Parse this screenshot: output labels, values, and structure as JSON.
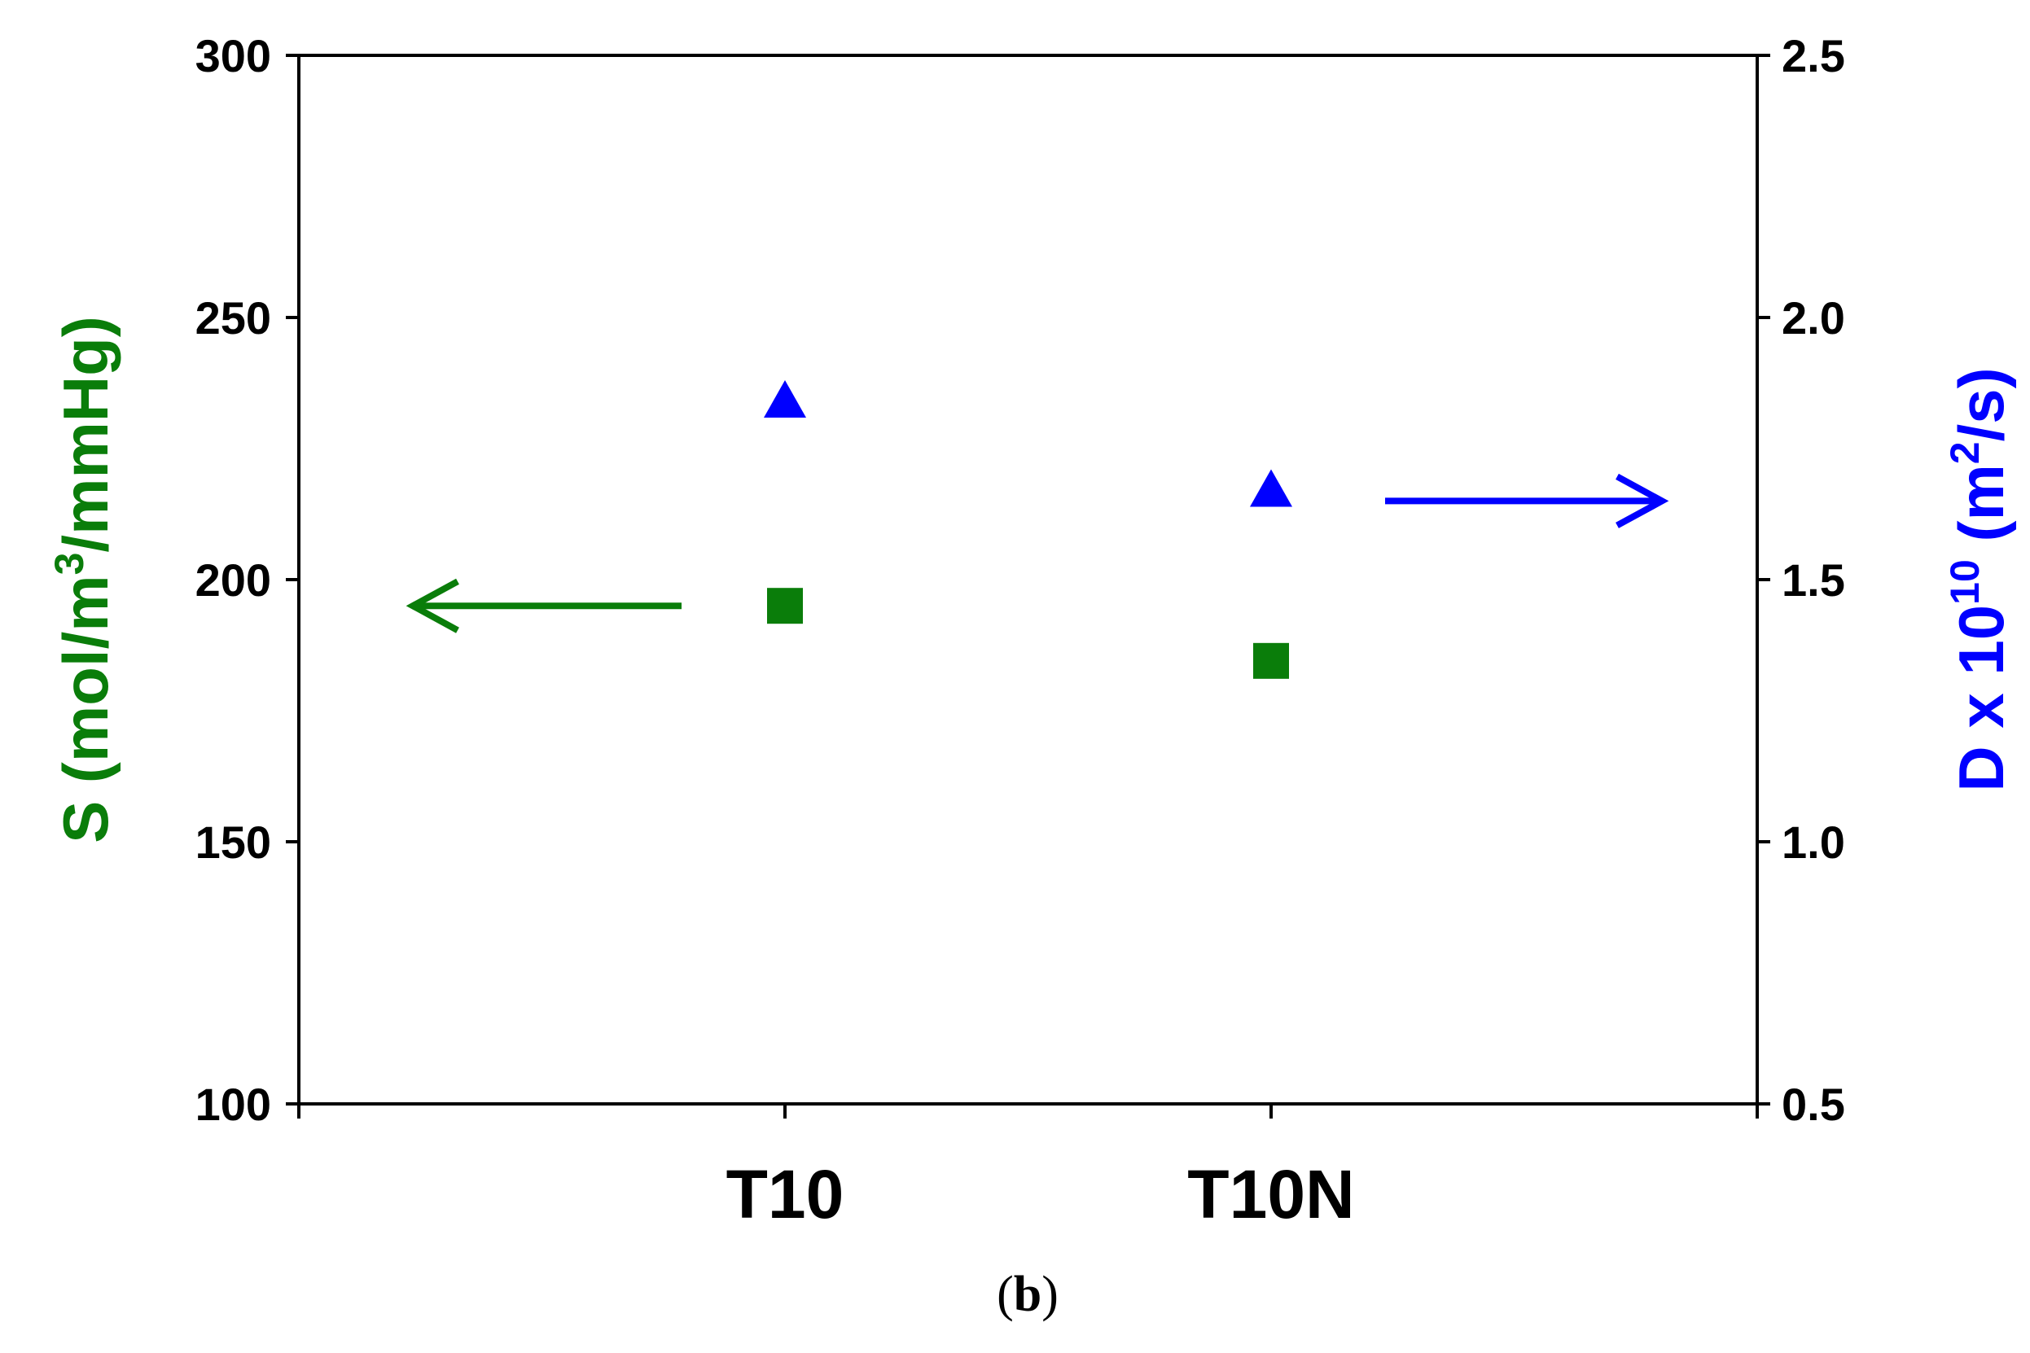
{
  "chart_data": {
    "type": "scatter",
    "categories": [
      "T10",
      "T10N"
    ],
    "series": [
      {
        "axis": "left",
        "marker": "square",
        "color": "#0a7d0a",
        "values": [
          195,
          184.5
        ]
      },
      {
        "axis": "right",
        "marker": "triangle",
        "color": "#0000ff",
        "values": [
          1.84,
          1.67
        ]
      }
    ],
    "ylabel_left": {
      "text": "S (mol/m",
      "sup": "3",
      "text_after": "/mmHg)",
      "color": "#0a7d0a"
    },
    "ylabel_right": {
      "text": "D x 10",
      "sup": "10",
      "text_after": " (m",
      "sup2": "2",
      "text_after2": "/s)",
      "color": "#0000ff"
    },
    "ylim_left": [
      100,
      300
    ],
    "yticks_left": [
      "100",
      "150",
      "200",
      "250",
      "300"
    ],
    "ylim_right": [
      0.5,
      2.5
    ],
    "yticks_right": [
      "0.5",
      "1.0",
      "1.5",
      "2.0",
      "2.5"
    ],
    "annotations": [
      {
        "type": "arrow",
        "direction": "left",
        "axis": "left",
        "value": 195,
        "color": "#0a7d0a"
      },
      {
        "type": "arrow",
        "direction": "right",
        "axis": "right",
        "value": 1.65,
        "color": "#0000ff"
      }
    ],
    "grid": false,
    "legend": "none"
  },
  "caption": {
    "open": "(",
    "letter": "b",
    "close": ")"
  }
}
